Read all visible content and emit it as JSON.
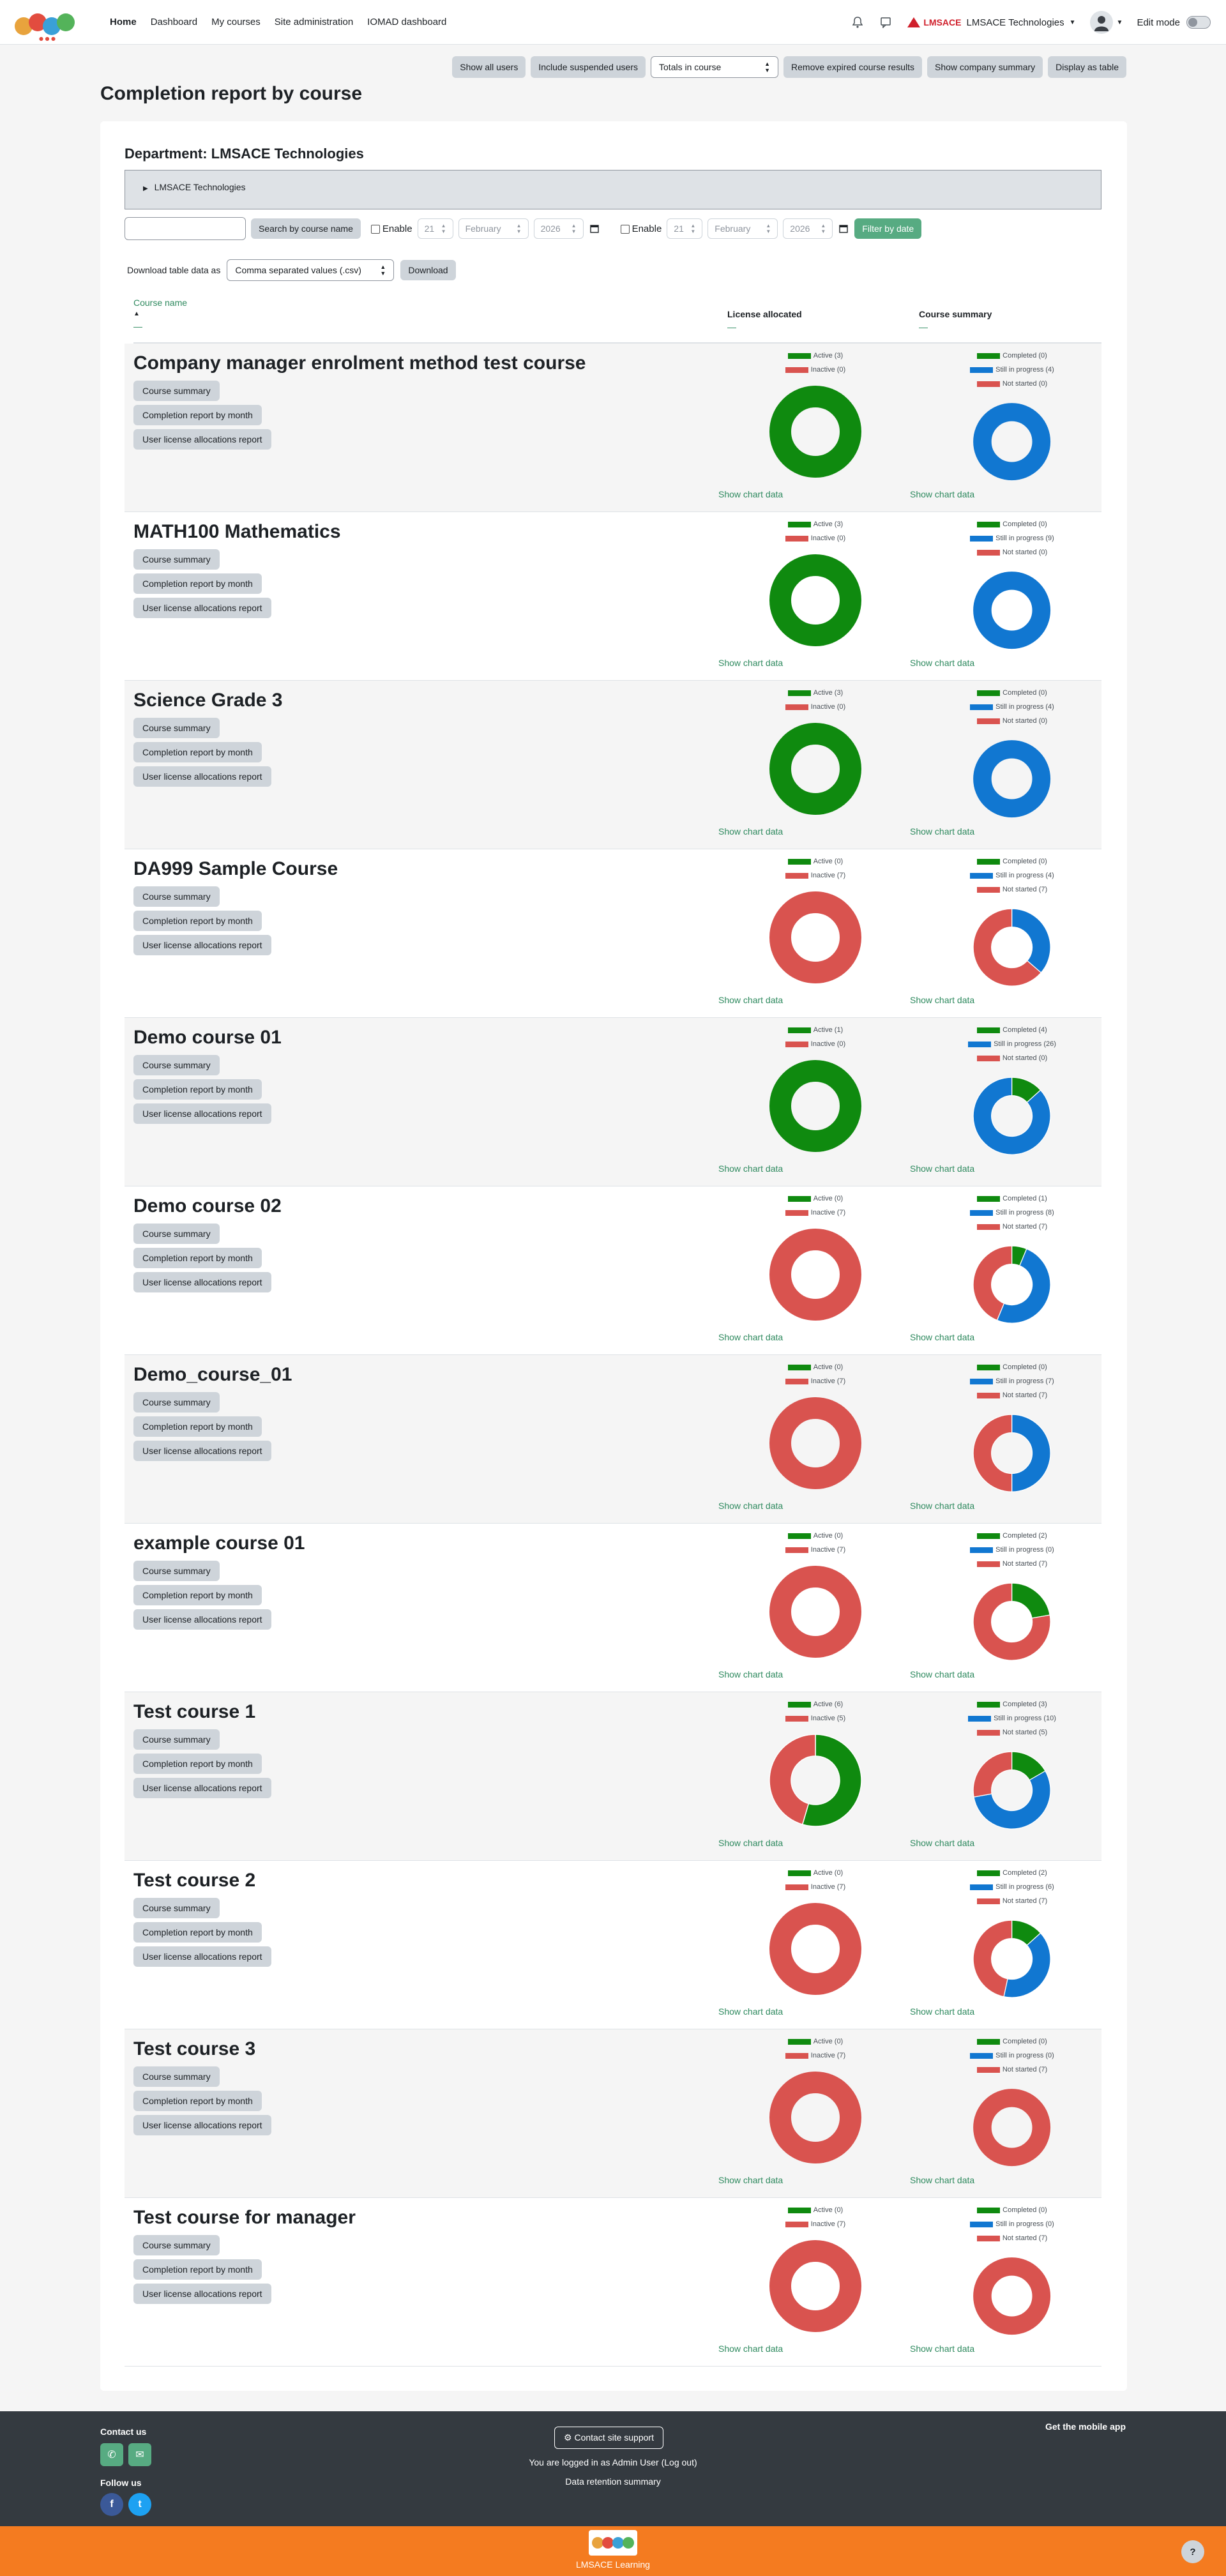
{
  "nav": {
    "links": [
      "Home",
      "Dashboard",
      "My courses",
      "Site administration",
      "IOMAD dashboard"
    ],
    "company_brand": "LMSACE",
    "company_name": "LMSACE Technologies",
    "edit_mode": "Edit mode"
  },
  "toolbar": {
    "show_all_users": "Show all users",
    "include_suspended": "Include suspended users",
    "totals_select": "Totals in course",
    "remove_expired": "Remove expired course results",
    "show_company_summary": "Show company summary",
    "display_as_table": "Display as table"
  },
  "page_title": "Completion report by course",
  "department": "Department: LMSACE Technologies",
  "tree_item": "LMSACE Technologies",
  "filter": {
    "search_button": "Search by course name",
    "enable_label": "Enable",
    "from_day": "21",
    "from_month": "February",
    "from_year": "2026",
    "to_day": "21",
    "to_month": "February",
    "to_year": "2026",
    "filter_button": "Filter by date"
  },
  "download": {
    "label": "Download table data as",
    "format": "Comma separated values (.csv)",
    "button": "Download"
  },
  "table": {
    "col_course": "Course name",
    "col_license": "License allocated",
    "col_summary": "Course summary",
    "sort_arrow": "▲",
    "dash": "—"
  },
  "row_links": [
    "Course summary",
    "Completion report by month",
    "User license allocations report"
  ],
  "show_chart_data": "Show chart data",
  "colors": {
    "active": "#0f8a0f",
    "inactive": "#d9534f",
    "completed": "#0f8a0f",
    "in_progress": "#1177d1",
    "not_started": "#d9534f",
    "accent": "#57ab82"
  },
  "chart_data": [
    {
      "course": "Company manager enrolment method test course",
      "type": "pie",
      "license": {
        "Active": 3,
        "Inactive": 0
      },
      "summary": {
        "Completed": 0,
        "Still in progress": 4,
        "Not started": 0
      }
    },
    {
      "course": "MATH100 Mathematics",
      "type": "pie",
      "license": {
        "Active": 3,
        "Inactive": 0
      },
      "summary": {
        "Completed": 0,
        "Still in progress": 9,
        "Not started": 0
      }
    },
    {
      "course": "Science Grade 3",
      "type": "pie",
      "license": {
        "Active": 3,
        "Inactive": 0
      },
      "summary": {
        "Completed": 0,
        "Still in progress": 4,
        "Not started": 0
      }
    },
    {
      "course": "DA999 Sample Course",
      "type": "pie",
      "license": {
        "Active": 0,
        "Inactive": 7
      },
      "summary": {
        "Completed": 0,
        "Still in progress": 4,
        "Not started": 7
      }
    },
    {
      "course": "Demo course 01",
      "type": "pie",
      "license": {
        "Active": 1,
        "Inactive": 0
      },
      "summary": {
        "Completed": 4,
        "Still in progress": 26,
        "Not started": 0
      }
    },
    {
      "course": "Demo course 02",
      "type": "pie",
      "license": {
        "Active": 0,
        "Inactive": 7
      },
      "summary": {
        "Completed": 1,
        "Still in progress": 8,
        "Not started": 7
      }
    },
    {
      "course": "Demo_course_01",
      "type": "pie",
      "license": {
        "Active": 0,
        "Inactive": 7
      },
      "summary": {
        "Completed": 0,
        "Still in progress": 7,
        "Not started": 7
      }
    },
    {
      "course": "example course 01",
      "type": "pie",
      "license": {
        "Active": 0,
        "Inactive": 7
      },
      "summary": {
        "Completed": 2,
        "Still in progress": 0,
        "Not started": 7
      }
    },
    {
      "course": "Test course 1",
      "type": "pie",
      "license": {
        "Active": 6,
        "Inactive": 5
      },
      "summary": {
        "Completed": 3,
        "Still in progress": 10,
        "Not started": 5
      }
    },
    {
      "course": "Test course 2",
      "type": "pie",
      "license": {
        "Active": 0,
        "Inactive": 7
      },
      "summary": {
        "Completed": 2,
        "Still in progress": 6,
        "Not started": 7
      }
    },
    {
      "course": "Test course 3",
      "type": "pie",
      "license": {
        "Active": 0,
        "Inactive": 7
      },
      "summary": {
        "Completed": 0,
        "Still in progress": 0,
        "Not started": 7
      }
    },
    {
      "course": "Test course for manager",
      "type": "pie",
      "license": {
        "Active": 0,
        "Inactive": 7
      },
      "summary": {
        "Completed": 0,
        "Still in progress": 0,
        "Not started": 7
      }
    }
  ],
  "footer": {
    "contact_us": "Contact us",
    "follow_us": "Follow us",
    "support": "Contact site support",
    "logged_in": "You are logged in as Admin User (Log out)",
    "retention": "Data retention summary",
    "mobile_app": "Get the mobile app",
    "brand": "LMSACE Learning"
  }
}
